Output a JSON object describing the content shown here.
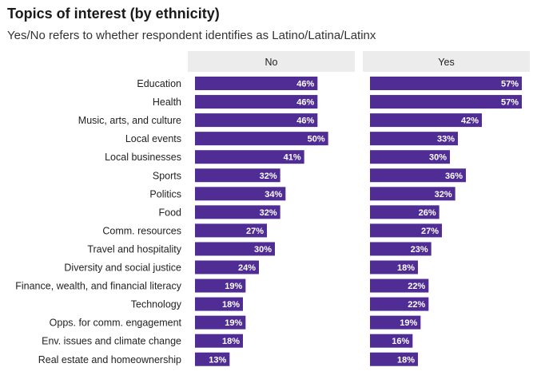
{
  "title": "Topics of interest (by ethnicity)",
  "subtitle": "Yes/No refers to whether respondent identifies as Latino/Latina/Latinx",
  "colors": {
    "bar": "#4f2d94",
    "strip": "#ececec",
    "background": "#ffffff"
  },
  "chart_data": {
    "type": "bar",
    "orientation": "horizontal",
    "title": "Topics of interest (by ethnicity)",
    "subtitle": "Yes/No refers to whether respondent identifies as Latino/Latina/Latinx",
    "value_format": "percent",
    "xlim": [
      0,
      60
    ],
    "grid": false,
    "categories": [
      "Education",
      "Health",
      "Music, arts, and culture",
      "Local events",
      "Local businesses",
      "Sports",
      "Politics",
      "Food",
      "Comm. resources",
      "Travel and hospitality",
      "Diversity and social justice",
      "Finance, wealth, and financial literacy",
      "Technology",
      "Opps. for comm. engagement",
      "Env. issues and climate change",
      "Real estate and homeownership"
    ],
    "series": [
      {
        "name": "No",
        "values": [
          46,
          46,
          46,
          50,
          41,
          32,
          34,
          32,
          27,
          30,
          24,
          19,
          18,
          19,
          18,
          13
        ]
      },
      {
        "name": "Yes",
        "values": [
          57,
          57,
          42,
          33,
          30,
          36,
          32,
          26,
          27,
          23,
          18,
          22,
          22,
          19,
          16,
          18
        ]
      }
    ]
  }
}
